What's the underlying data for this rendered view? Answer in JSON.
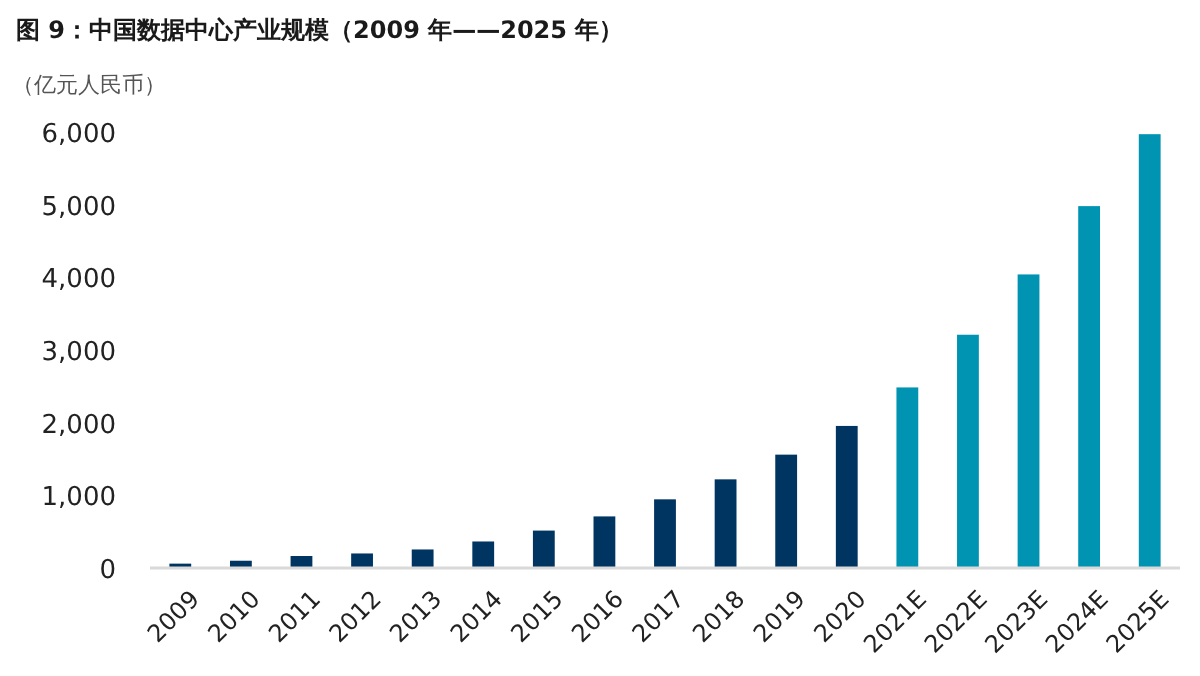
{
  "chart_data": {
    "type": "bar",
    "title": "图 9：中国数据中心产业规模（2009 年——2025 年）",
    "ylabel": "（亿元人民币）",
    "categories": [
      "2009",
      "2010",
      "2011",
      "2012",
      "2013",
      "2014",
      "2015",
      "2016",
      "2017",
      "2018",
      "2019",
      "2020",
      "2021E",
      "2022E",
      "2023E",
      "2024E",
      "2025E"
    ],
    "values": [
      60,
      100,
      165,
      200,
      255,
      365,
      515,
      710,
      945,
      1220,
      1560,
      1955,
      2485,
      3210,
      4040,
      4980,
      5970
    ],
    "colors": [
      "#003562",
      "#003562",
      "#003562",
      "#003562",
      "#003562",
      "#003562",
      "#003562",
      "#003562",
      "#003562",
      "#003562",
      "#003562",
      "#003562",
      "#0093b2",
      "#0093b2",
      "#0093b2",
      "#0093b2",
      "#0093b2"
    ],
    "ylim": [
      0,
      6000
    ],
    "yticks": [
      {
        "value": 0,
        "label": "0"
      },
      {
        "value": 1000,
        "label": "1,000"
      },
      {
        "value": 2000,
        "label": "2,000"
      },
      {
        "value": 3000,
        "label": "3,000"
      },
      {
        "value": 4000,
        "label": "4,000"
      },
      {
        "value": 5000,
        "label": "5,000"
      },
      {
        "value": 6000,
        "label": "6,000"
      }
    ],
    "grid": false
  }
}
